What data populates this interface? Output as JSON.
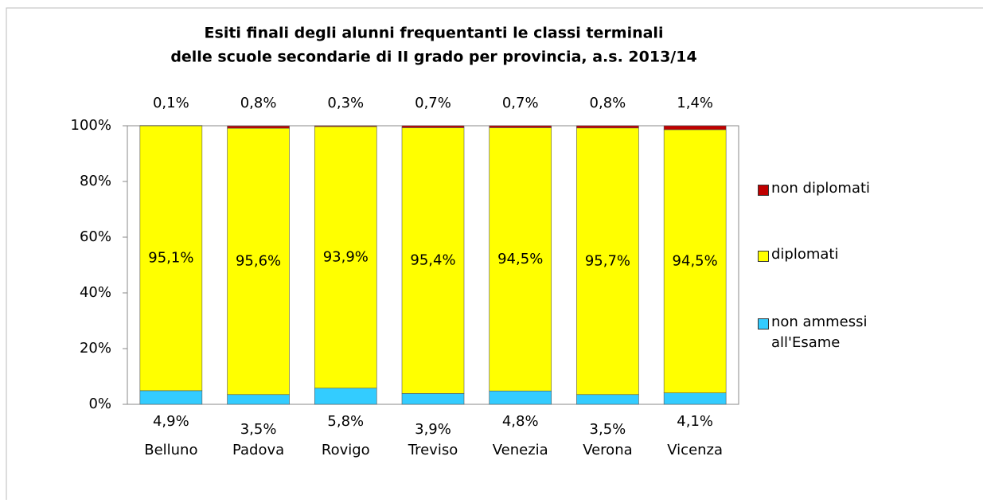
{
  "chart_data": {
    "type": "stacked_bar",
    "title": [
      "Esiti finali degli alunni frequentanti le classi terminali",
      "delle scuole secondarie di II grado per provincia, a.s. 2013/14"
    ],
    "categories": [
      "Belluno",
      "Padova",
      "Rovigo",
      "Treviso",
      "Venezia",
      "Verona",
      "Vicenza"
    ],
    "series": [
      {
        "name": "non ammessi all'Esame",
        "color": "#33ccff",
        "values": [
          4.9,
          3.5,
          5.8,
          3.9,
          4.8,
          3.5,
          4.1
        ],
        "value_labels": [
          "4,9%",
          "3,5%",
          "5,8%",
          "3,9%",
          "4,8%",
          "3,5%",
          "4,1%"
        ]
      },
      {
        "name": "diplomati",
        "color": "#ffff00",
        "values": [
          95.1,
          95.6,
          93.9,
          95.4,
          94.5,
          95.7,
          94.5
        ],
        "value_labels": [
          "95,1%",
          "95,6%",
          "93,9%",
          "95,4%",
          "94,5%",
          "95,7%",
          "94,5%"
        ]
      },
      {
        "name": "non diplomati",
        "color": "#c00000",
        "values": [
          0.1,
          0.8,
          0.3,
          0.7,
          0.7,
          0.8,
          1.4
        ],
        "value_labels": [
          "0,1%",
          "0,8%",
          "0,3%",
          "0,7%",
          "0,7%",
          "0,8%",
          "1,4%"
        ]
      }
    ],
    "ylim": [
      0,
      100
    ],
    "yticks": [
      {
        "value": 0,
        "label": "0%"
      },
      {
        "value": 20,
        "label": "20%"
      },
      {
        "value": 40,
        "label": "40%"
      },
      {
        "value": 60,
        "label": "60%"
      },
      {
        "value": 80,
        "label": "80%"
      },
      {
        "value": 100,
        "label": "100%"
      }
    ],
    "grid": false,
    "legend": "right"
  }
}
